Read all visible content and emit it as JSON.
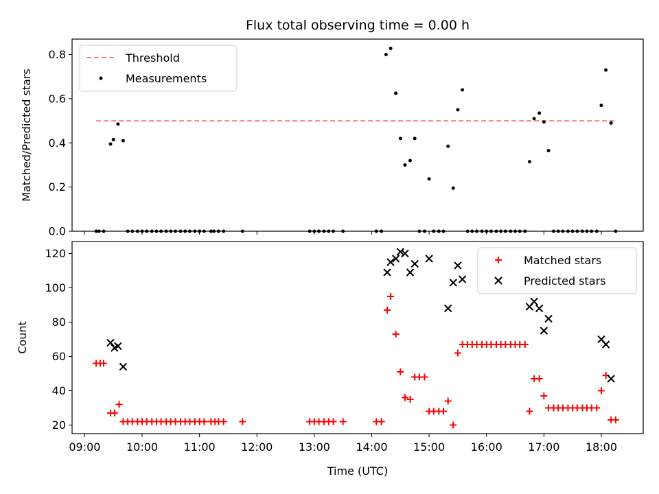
{
  "chart_data": {
    "title": "Flux total observing time = 0.00 h",
    "xlabel": "Time (UTC)",
    "x_tick_labels": [
      "09:00",
      "10:00",
      "11:00",
      "12:00",
      "13:00",
      "14:00",
      "15:00",
      "16:00",
      "17:00",
      "18:00"
    ],
    "x_tick_hours": [
      9,
      10,
      11,
      12,
      13,
      14,
      15,
      16,
      17,
      18
    ],
    "xlim_hours": [
      8.78,
      18.73
    ],
    "panels": [
      {
        "type": "scatter",
        "ylabel": "Matched/Predicted stars",
        "ylim": [
          0,
          0.87
        ],
        "y_ticks": [
          0.0,
          0.2,
          0.4,
          0.6,
          0.8
        ],
        "y_tick_labels": [
          "0.0",
          "0.2",
          "0.4",
          "0.6",
          "0.8"
        ],
        "legend_position": "upper-left",
        "threshold": {
          "name": "Threshold",
          "value": 0.5,
          "x_start_hour": 9.2,
          "x_end_hour": 18.27,
          "color": "#ff7f7f"
        },
        "measurements": {
          "name": "Measurements",
          "color": "#000000",
          "points": [
            [
              9.2,
              0.0
            ],
            [
              9.25,
              0.0
            ],
            [
              9.33,
              0.0
            ],
            [
              9.45,
              0.395
            ],
            [
              9.5,
              0.415
            ],
            [
              9.58,
              0.485
            ],
            [
              9.67,
              0.41
            ],
            [
              9.75,
              0.0
            ],
            [
              9.83,
              0.0
            ],
            [
              9.92,
              0.0
            ],
            [
              10.0,
              0.0
            ],
            [
              10.08,
              0.0
            ],
            [
              10.17,
              0.0
            ],
            [
              10.25,
              0.0
            ],
            [
              10.33,
              0.0
            ],
            [
              10.42,
              0.0
            ],
            [
              10.5,
              0.0
            ],
            [
              10.58,
              0.0
            ],
            [
              10.67,
              0.0
            ],
            [
              10.75,
              0.0
            ],
            [
              10.83,
              0.0
            ],
            [
              10.92,
              0.0
            ],
            [
              11.0,
              0.0
            ],
            [
              11.08,
              0.0
            ],
            [
              11.2,
              0.0
            ],
            [
              11.25,
              0.0
            ],
            [
              11.33,
              0.0
            ],
            [
              11.42,
              0.0
            ],
            [
              11.75,
              0.0
            ],
            [
              12.92,
              0.0
            ],
            [
              13.0,
              0.0
            ],
            [
              13.08,
              0.0
            ],
            [
              13.17,
              0.0
            ],
            [
              13.25,
              0.0
            ],
            [
              13.33,
              0.0
            ],
            [
              13.5,
              0.0
            ],
            [
              14.08,
              0.0
            ],
            [
              14.17,
              0.0
            ],
            [
              14.25,
              0.8
            ],
            [
              14.33,
              0.828
            ],
            [
              14.42,
              0.625
            ],
            [
              14.5,
              0.42
            ],
            [
              14.58,
              0.3
            ],
            [
              14.67,
              0.32
            ],
            [
              14.75,
              0.42
            ],
            [
              14.83,
              0.0
            ],
            [
              14.92,
              0.0
            ],
            [
              15.0,
              0.237
            ],
            [
              15.08,
              0.0
            ],
            [
              15.17,
              0.0
            ],
            [
              15.25,
              0.0
            ],
            [
              15.33,
              0.385
            ],
            [
              15.42,
              0.195
            ],
            [
              15.5,
              0.55
            ],
            [
              15.58,
              0.64
            ],
            [
              15.67,
              0.0
            ],
            [
              15.75,
              0.0
            ],
            [
              15.83,
              0.0
            ],
            [
              15.92,
              0.0
            ],
            [
              16.0,
              0.0
            ],
            [
              16.08,
              0.0
            ],
            [
              16.17,
              0.0
            ],
            [
              16.25,
              0.0
            ],
            [
              16.33,
              0.0
            ],
            [
              16.42,
              0.0
            ],
            [
              16.5,
              0.0
            ],
            [
              16.58,
              0.0
            ],
            [
              16.67,
              0.0
            ],
            [
              16.75,
              0.315
            ],
            [
              16.83,
              0.51
            ],
            [
              16.92,
              0.535
            ],
            [
              17.0,
              0.495
            ],
            [
              17.08,
              0.365
            ],
            [
              17.17,
              0.0
            ],
            [
              17.25,
              0.0
            ],
            [
              17.33,
              0.0
            ],
            [
              17.42,
              0.0
            ],
            [
              17.5,
              0.0
            ],
            [
              17.58,
              0.0
            ],
            [
              17.67,
              0.0
            ],
            [
              17.75,
              0.0
            ],
            [
              17.83,
              0.0
            ],
            [
              17.92,
              0.0
            ],
            [
              18.0,
              0.57
            ],
            [
              18.08,
              0.73
            ],
            [
              18.17,
              0.49
            ],
            [
              18.25,
              0.0
            ]
          ]
        }
      },
      {
        "type": "scatter",
        "ylabel": "Count",
        "ylim": [
          15,
          127
        ],
        "y_ticks": [
          20,
          40,
          60,
          80,
          100,
          120
        ],
        "y_tick_labels": [
          "20",
          "40",
          "60",
          "80",
          "100",
          "120"
        ],
        "legend_position": "upper-right",
        "series": [
          {
            "name": "Matched stars",
            "marker": "plus",
            "color": "#ff0000",
            "points": [
              [
                9.2,
                56
              ],
              [
                9.27,
                56
              ],
              [
                9.33,
                56
              ],
              [
                9.45,
                27
              ],
              [
                9.52,
                27
              ],
              [
                9.6,
                32
              ],
              [
                9.67,
                22
              ],
              [
                9.75,
                22
              ],
              [
                9.83,
                22
              ],
              [
                9.92,
                22
              ],
              [
                10.0,
                22
              ],
              [
                10.08,
                22
              ],
              [
                10.17,
                22
              ],
              [
                10.25,
                22
              ],
              [
                10.33,
                22
              ],
              [
                10.42,
                22
              ],
              [
                10.5,
                22
              ],
              [
                10.58,
                22
              ],
              [
                10.67,
                22
              ],
              [
                10.75,
                22
              ],
              [
                10.83,
                22
              ],
              [
                10.92,
                22
              ],
              [
                11.0,
                22
              ],
              [
                11.08,
                22
              ],
              [
                11.2,
                22
              ],
              [
                11.27,
                22
              ],
              [
                11.33,
                22
              ],
              [
                11.42,
                22
              ],
              [
                11.75,
                22
              ],
              [
                12.92,
                22
              ],
              [
                13.0,
                22
              ],
              [
                13.08,
                22
              ],
              [
                13.17,
                22
              ],
              [
                13.25,
                22
              ],
              [
                13.33,
                22
              ],
              [
                13.5,
                22
              ],
              [
                14.08,
                22
              ],
              [
                14.17,
                22
              ],
              [
                14.27,
                87
              ],
              [
                14.33,
                95
              ],
              [
                14.42,
                73
              ],
              [
                14.5,
                51
              ],
              [
                14.58,
                36
              ],
              [
                14.67,
                35
              ],
              [
                14.75,
                48
              ],
              [
                14.83,
                48
              ],
              [
                14.92,
                48
              ],
              [
                15.0,
                28
              ],
              [
                15.08,
                28
              ],
              [
                15.17,
                28
              ],
              [
                15.25,
                28
              ],
              [
                15.33,
                34
              ],
              [
                15.42,
                20
              ],
              [
                15.5,
                62
              ],
              [
                15.58,
                67
              ],
              [
                15.67,
                67
              ],
              [
                15.75,
                67
              ],
              [
                15.83,
                67
              ],
              [
                15.92,
                67
              ],
              [
                16.0,
                67
              ],
              [
                16.08,
                67
              ],
              [
                16.17,
                67
              ],
              [
                16.25,
                67
              ],
              [
                16.33,
                67
              ],
              [
                16.42,
                67
              ],
              [
                16.5,
                67
              ],
              [
                16.58,
                67
              ],
              [
                16.67,
                67
              ],
              [
                16.75,
                28
              ],
              [
                16.83,
                47
              ],
              [
                16.92,
                47
              ],
              [
                17.0,
                37
              ],
              [
                17.08,
                30
              ],
              [
                17.17,
                30
              ],
              [
                17.25,
                30
              ],
              [
                17.33,
                30
              ],
              [
                17.42,
                30
              ],
              [
                17.5,
                30
              ],
              [
                17.58,
                30
              ],
              [
                17.67,
                30
              ],
              [
                17.75,
                30
              ],
              [
                17.83,
                30
              ],
              [
                17.92,
                30
              ],
              [
                18.0,
                40
              ],
              [
                18.08,
                49
              ],
              [
                18.17,
                23
              ],
              [
                18.25,
                23
              ]
            ]
          },
          {
            "name": "Predicted stars",
            "marker": "x",
            "color": "#000000",
            "points": [
              [
                9.45,
                68
              ],
              [
                9.52,
                65
              ],
              [
                9.58,
                66
              ],
              [
                9.67,
                54
              ],
              [
                14.27,
                109
              ],
              [
                14.33,
                115
              ],
              [
                14.42,
                117
              ],
              [
                14.5,
                121
              ],
              [
                14.58,
                120
              ],
              [
                14.67,
                109
              ],
              [
                14.75,
                114
              ],
              [
                15.0,
                117
              ],
              [
                15.33,
                88
              ],
              [
                15.42,
                103
              ],
              [
                15.5,
                113
              ],
              [
                15.58,
                105
              ],
              [
                16.75,
                89
              ],
              [
                16.83,
                92
              ],
              [
                16.92,
                88
              ],
              [
                17.0,
                75
              ],
              [
                17.08,
                82
              ],
              [
                18.0,
                70
              ],
              [
                18.08,
                67
              ],
              [
                18.17,
                47
              ]
            ]
          }
        ]
      }
    ]
  }
}
